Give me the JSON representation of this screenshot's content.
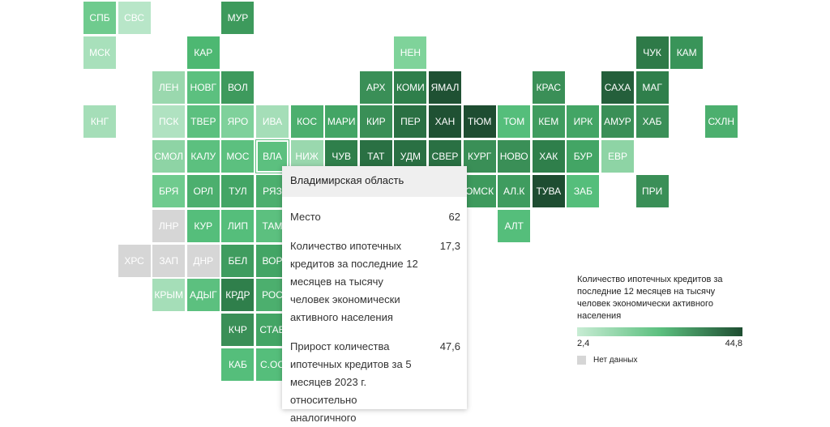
{
  "tiles": [
    {
      "label": "СПБ",
      "color": "#6fcb8e"
    },
    {
      "label": "СВС",
      "color": "#b8e6c8"
    },
    {
      "label": "МУР",
      "color": "#3d9a5c"
    },
    {
      "label": "МСК",
      "color": "#a8e0bb"
    },
    {
      "label": "КАР",
      "color": "#4db872"
    },
    {
      "label": "НЕН",
      "color": "#7fd39a"
    },
    {
      "label": "ЧУК",
      "color": "#2e7a48"
    },
    {
      "label": "КАМ",
      "color": "#399459"
    },
    {
      "label": "ЛЕН",
      "color": "#9ad8ae"
    },
    {
      "label": "НОВГ",
      "color": "#5cc07f"
    },
    {
      "label": "ВОЛ",
      "color": "#3e9a5d"
    },
    {
      "label": "АРХ",
      "color": "#3a8f57"
    },
    {
      "label": "КОМИ",
      "color": "#2f7f4b"
    },
    {
      "label": "ЯМАЛ",
      "color": "#1f5133"
    },
    {
      "label": "КРАС",
      "color": "#3a8f57"
    },
    {
      "label": "САХА",
      "color": "#245f3b"
    },
    {
      "label": "МАГ",
      "color": "#2f7f4b"
    },
    {
      "label": "КНГ",
      "color": "#a5deb8"
    },
    {
      "label": "ПСК",
      "color": "#b0e2c1"
    },
    {
      "label": "ТВЕР",
      "color": "#5cc07f"
    },
    {
      "label": "ЯРО",
      "color": "#7fd19b"
    },
    {
      "label": "ИВА",
      "color": "#a5deb8"
    },
    {
      "label": "КОС",
      "color": "#4caf6e"
    },
    {
      "label": "МАРИ",
      "color": "#43a565"
    },
    {
      "label": "КИР",
      "color": "#3a8f57"
    },
    {
      "label": "ПЕР",
      "color": "#2a7043"
    },
    {
      "label": "ХАН",
      "color": "#1f5133"
    },
    {
      "label": "ТЮМ",
      "color": "#1e4d31"
    },
    {
      "label": "ТОМ",
      "color": "#55be7b"
    },
    {
      "label": "КЕМ",
      "color": "#3f9c5f"
    },
    {
      "label": "ИРК",
      "color": "#43a565"
    },
    {
      "label": "АМУР",
      "color": "#3a8f57"
    },
    {
      "label": "ХАБ",
      "color": "#3a8f57"
    },
    {
      "label": "СХЛН",
      "color": "#4caf6e"
    },
    {
      "label": "СМОЛ",
      "color": "#8ed4a5"
    },
    {
      "label": "КАЛУ",
      "color": "#5cc07f"
    },
    {
      "label": "МОС",
      "color": "#5cc07f"
    },
    {
      "label": "ВЛА",
      "color": "#5cc07f",
      "selected": true
    },
    {
      "label": "НИЖ",
      "color": "#9ad8ae"
    },
    {
      "label": "ЧУВ",
      "color": "#2f7f4b"
    },
    {
      "label": "ТАТ",
      "color": "#2a7043"
    },
    {
      "label": "УДМ",
      "color": "#2a7043"
    },
    {
      "label": "СВЕР",
      "color": "#2a7043"
    },
    {
      "label": "КУРГ",
      "color": "#3a8f57"
    },
    {
      "label": "НОВО",
      "color": "#3a8f57"
    },
    {
      "label": "ХАК",
      "color": "#2f7f4b"
    },
    {
      "label": "БУР",
      "color": "#43a565"
    },
    {
      "label": "ЕВР",
      "color": "#8ed4a5"
    },
    {
      "label": "БРЯ",
      "color": "#6fcb8e"
    },
    {
      "label": "ОРЛ",
      "color": "#4caf6e"
    },
    {
      "label": "ТУЛ",
      "color": "#43a565"
    },
    {
      "label": "РЯЗ",
      "color": "#4caf6e"
    },
    {
      "label": "ОМСК",
      "color": "#3e9a5d"
    },
    {
      "label": "АЛ.К",
      "color": "#3f9c5f"
    },
    {
      "label": "ТУВА",
      "color": "#1e4d31"
    },
    {
      "label": "ЗАБ",
      "color": "#55be7b"
    },
    {
      "label": "ПРИ",
      "color": "#3a8f57"
    },
    {
      "label": "ЛНР",
      "color": "#d6d6d6"
    },
    {
      "label": "КУР",
      "color": "#55be7b"
    },
    {
      "label": "ЛИП",
      "color": "#55be7b"
    },
    {
      "label": "ТАМ",
      "color": "#5cc07f"
    },
    {
      "label": "АЛТ",
      "color": "#55be7b"
    },
    {
      "label": "ХРС",
      "color": "#d6d6d6"
    },
    {
      "label": "ЗАП",
      "color": "#d6d6d6"
    },
    {
      "label": "ДНР",
      "color": "#d6d6d6"
    },
    {
      "label": "БЕЛ",
      "color": "#3f9c5f"
    },
    {
      "label": "ВОР",
      "color": "#43a565"
    },
    {
      "label": "КРЫМ",
      "color": "#a5deb8"
    },
    {
      "label": "АДЫГ",
      "color": "#5cc07f"
    },
    {
      "label": "КРДР",
      "color": "#2f7f4b"
    },
    {
      "label": "РОС",
      "color": "#4caf6e"
    },
    {
      "label": "КЧР",
      "color": "#3a8f57"
    },
    {
      "label": "СТАВ",
      "color": "#43a565"
    },
    {
      "label": "КАБ",
      "color": "#55be7b"
    },
    {
      "label": "С.ОС",
      "color": "#55be7b"
    }
  ],
  "tooltip": {
    "title": "Владимирская область",
    "rows": [
      {
        "label": "Место",
        "value": "62"
      },
      {
        "label": "Количество ипотечных кредитов за последние 12 месяцев на тысячу человек экономически активного населения",
        "value": "17,3"
      },
      {
        "label": "Прирост количества ипотечных кредитов за 5 месяцев 2023 г. относительно аналогичного",
        "value": "47,6"
      }
    ]
  },
  "legend": {
    "title": "Количество ипотечных кредитов за последние 12 месяцев на тысячу человек экономически активного населения",
    "min": "2,4",
    "max": "44,8",
    "colors": [
      "#c8ecd4",
      "#5cc07f",
      "#1e4d31"
    ],
    "no_data": "Нет данных",
    "no_data_color": "#d6d6d6"
  }
}
